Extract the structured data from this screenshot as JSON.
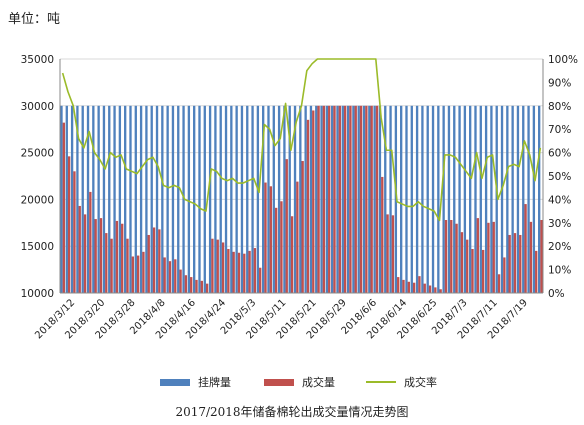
{
  "unit_label": "单位：吨",
  "caption": "2017/2018年储备棉轮出成交量情况走势图",
  "colors": {
    "listed": "#4F81BD",
    "traded": "#C0504D",
    "rate": "#9BBB29",
    "grid": "#d9d9d9"
  },
  "chart_data": {
    "type": "bar",
    "title": "2017/2018年储备棉轮出成交量情况走势图",
    "ylim": [
      10000,
      35000
    ],
    "y2lim": [
      0,
      100
    ],
    "y_ticks": [
      "10000",
      "15000",
      "20000",
      "25000",
      "30000",
      "35000"
    ],
    "y2_ticks": [
      "0%",
      "10%",
      "20%",
      "30%",
      "40%",
      "50%",
      "60%",
      "70%",
      "80%",
      "90%",
      "100%"
    ],
    "x_tick_labels": [
      "2018/3/12",
      "2018/3/20",
      "2018/3/28",
      "2018/4/8",
      "2018/4/16",
      "2018/4/24",
      "2018/5/3",
      "2018/5/11",
      "2018/5/21",
      "2018/5/29",
      "2018/6/6",
      "2018/6/14",
      "2018/6/25",
      "2018/7/3",
      "2018/7/11",
      "2018/7/19"
    ],
    "legend_position": "bottom",
    "series": [
      {
        "name": "挂牌量",
        "kind": "bar",
        "axis": "left",
        "values": [
          30000,
          30000,
          30000,
          30000,
          30000,
          30000,
          30000,
          30000,
          30000,
          30000,
          30000,
          30000,
          30000,
          30000,
          30000,
          30000,
          30000,
          30000,
          30000,
          30000,
          30000,
          30000,
          30000,
          30000,
          30000,
          30000,
          30000,
          30000,
          30000,
          30000,
          30000,
          30000,
          30000,
          30000,
          30000,
          30000,
          30000,
          30000,
          30000,
          30000,
          30000,
          30000,
          30000,
          30000,
          30000,
          30000,
          30000,
          30000,
          30000,
          30000,
          30000,
          30000,
          30000,
          30000,
          30000,
          30000,
          30000,
          30000,
          30000,
          30000,
          30000,
          30000,
          30000,
          30000,
          30000,
          30000,
          30000,
          30000,
          30000,
          30000,
          30000,
          30000,
          30000,
          30000,
          30000,
          30000,
          30000,
          30000,
          30000,
          30000,
          30000,
          30000,
          30000,
          30000,
          30000,
          30000,
          30000,
          30000,
          30000,
          30000,
          30000
        ]
      },
      {
        "name": "成交量",
        "kind": "bar",
        "axis": "left",
        "values": [
          28200,
          24600,
          23000,
          19300,
          18400,
          20800,
          17900,
          18000,
          16400,
          15800,
          17700,
          17400,
          15800,
          13900,
          14000,
          14400,
          16200,
          17000,
          16800,
          13800,
          13400,
          13600,
          12500,
          11900,
          11700,
          11400,
          11300,
          11000,
          15800,
          15700,
          15400,
          14700,
          14400,
          14300,
          14200,
          14500,
          14800,
          12700,
          21800,
          21400,
          19100,
          19800,
          24300,
          18200,
          21900,
          24100,
          28500,
          29500,
          30000,
          30000,
          30000,
          30000,
          30000,
          30000,
          30000,
          30000,
          30000,
          30000,
          30000,
          30000,
          22400,
          18400,
          18300,
          11700,
          11400,
          11200,
          11100,
          11800,
          11000,
          10800,
          10600,
          10400,
          17800,
          17800,
          17400,
          16500,
          15700,
          14700,
          18000,
          14600,
          17500,
          17600,
          12000,
          13800,
          16200,
          16400,
          16200,
          19500,
          17600,
          14500,
          17800
        ]
      },
      {
        "name": "成交率",
        "kind": "line",
        "axis": "right",
        "values": [
          94,
          86,
          80,
          66,
          62,
          69,
          60,
          57,
          53,
          60,
          58,
          59,
          53,
          52,
          51,
          54,
          57,
          58,
          54,
          46,
          45,
          46,
          45,
          40,
          39,
          38,
          36,
          35,
          53,
          52,
          49,
          48,
          49,
          47,
          47,
          48,
          49,
          43,
          72,
          70,
          63,
          66,
          81,
          61,
          73,
          80,
          95,
          98,
          100,
          100,
          100,
          100,
          100,
          100,
          100,
          100,
          100,
          100,
          100,
          100,
          75,
          61,
          61,
          39,
          38,
          37,
          37,
          39,
          37,
          36,
          35,
          31,
          59,
          59,
          58,
          55,
          52,
          49,
          60,
          49,
          58,
          59,
          40,
          46,
          54,
          55,
          54,
          65,
          59,
          48,
          62
        ]
      }
    ]
  }
}
